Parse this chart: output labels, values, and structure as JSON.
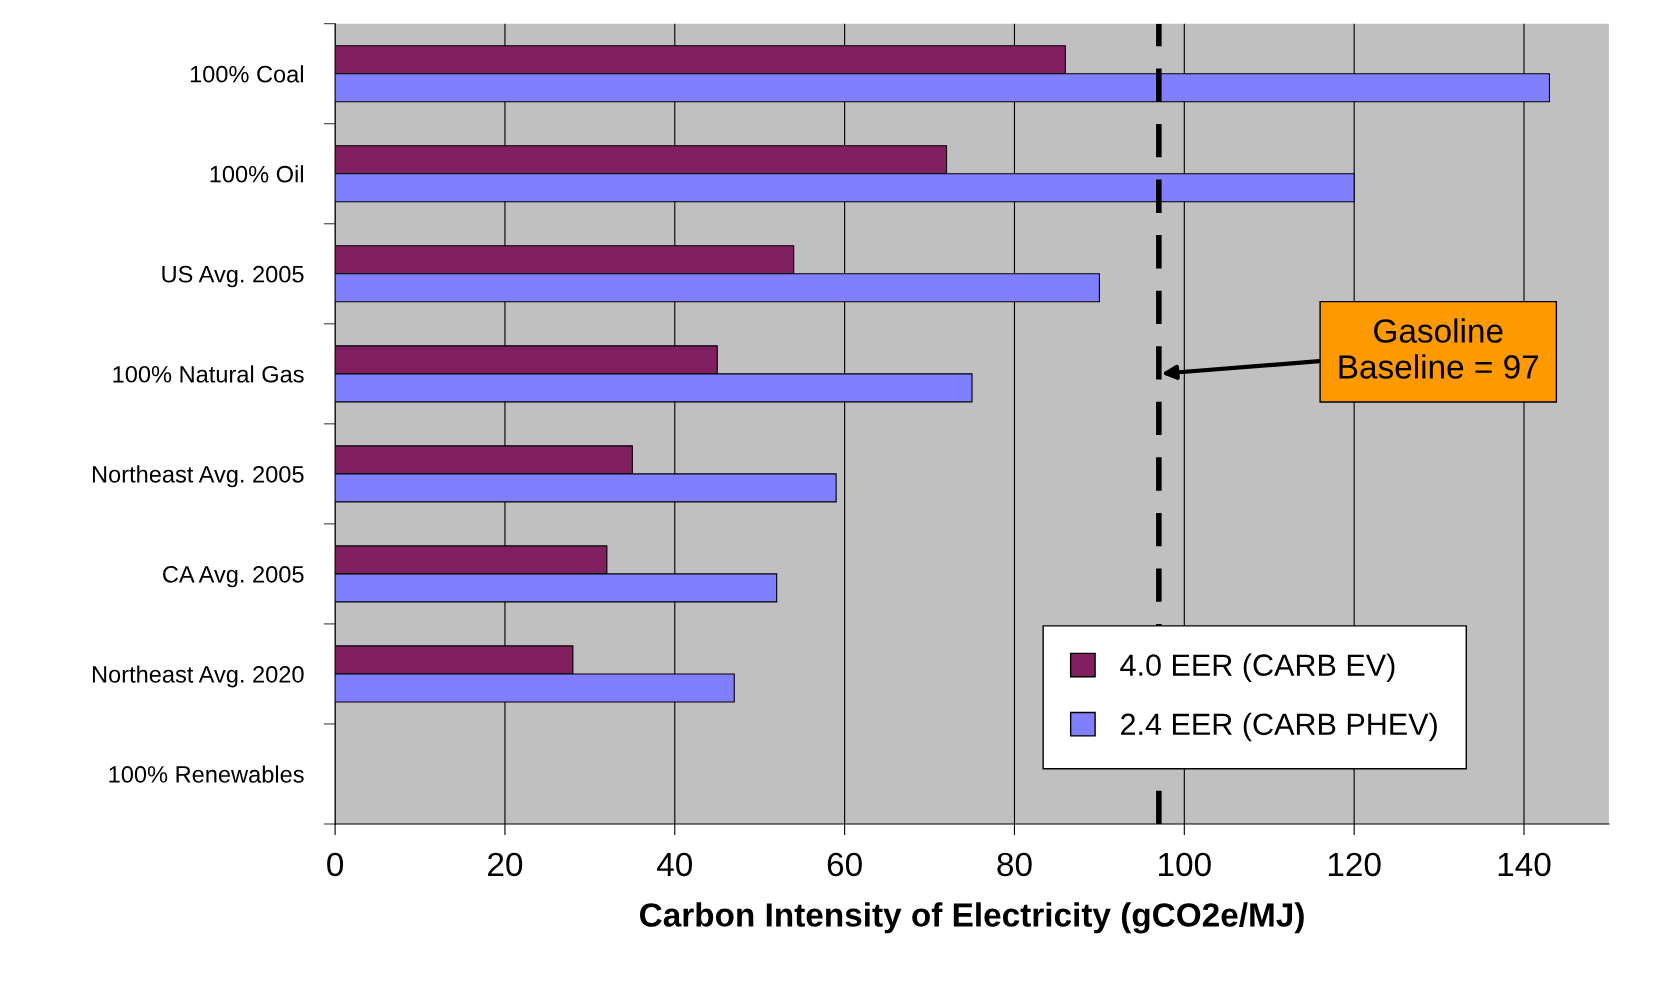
{
  "chart_data": {
    "type": "bar",
    "orientation": "horizontal",
    "xlabel": "Carbon Intensity of Electricity (gCO2e/MJ)",
    "categories": [
      "100% Coal",
      "100% Oil",
      "US Avg. 2005",
      "100% Natural Gas",
      "Northeast Avg. 2005",
      "CA Avg. 2005",
      "Northeast Avg. 2020",
      "100% Renewables"
    ],
    "series": [
      {
        "name": "4.0 EER (CARB EV)",
        "color": "#802060",
        "values": [
          86,
          72,
          54,
          45,
          35,
          32,
          28,
          0
        ]
      },
      {
        "name": "2.4 EER (CARB PHEV)",
        "color": "#8080ff",
        "values": [
          143,
          120,
          90,
          75,
          59,
          52,
          47,
          0
        ]
      }
    ],
    "xlim": [
      0,
      150
    ],
    "xticks": [
      0,
      20,
      40,
      60,
      80,
      100,
      120,
      140
    ],
    "grid": "x",
    "legend": "bottom right",
    "ref_lines": [
      {
        "axis": "x",
        "value": 97,
        "label": "Gasoline\nBaseline = 97",
        "color": "#000000",
        "line_style": "dashed"
      }
    ]
  }
}
